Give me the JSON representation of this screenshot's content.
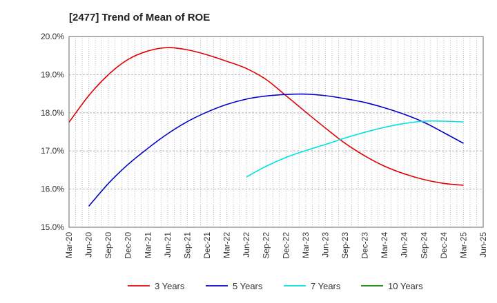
{
  "chart_data": {
    "type": "line",
    "title": "[2477]  Trend of Mean of ROE",
    "xlabel": "",
    "ylabel": "",
    "x": [
      "Mar-20",
      "Jun-20",
      "Sep-20",
      "Dec-20",
      "Mar-21",
      "Jun-21",
      "Sep-21",
      "Dec-21",
      "Mar-22",
      "Jun-22",
      "Sep-22",
      "Dec-22",
      "Mar-23",
      "Jun-23",
      "Sep-23",
      "Dec-23",
      "Mar-24",
      "Jun-24",
      "Sep-24",
      "Dec-24",
      "Mar-25",
      "Jun-25"
    ],
    "ylim": [
      15.0,
      20.0
    ],
    "yticks": [
      "15.0%",
      "16.0%",
      "17.0%",
      "18.0%",
      "19.0%",
      "20.0%"
    ],
    "grid": true,
    "legend_position": "bottom",
    "series": [
      {
        "name": "3 Years",
        "color": "#e00000",
        "values": [
          17.75,
          18.45,
          19.0,
          19.4,
          19.62,
          19.71,
          19.65,
          19.52,
          19.35,
          19.16,
          18.87,
          18.45,
          18.02,
          17.6,
          17.2,
          16.87,
          16.6,
          16.4,
          16.25,
          16.15,
          16.1,
          null
        ]
      },
      {
        "name": "5 Years",
        "color": "#0000c8",
        "values": [
          null,
          15.55,
          16.15,
          16.65,
          17.07,
          17.45,
          17.77,
          18.02,
          18.22,
          18.36,
          18.44,
          18.48,
          18.49,
          18.45,
          18.37,
          18.27,
          18.13,
          17.96,
          17.75,
          17.48,
          17.2,
          null
        ]
      },
      {
        "name": "7 Years",
        "color": "#00e0e0",
        "values": [
          null,
          null,
          null,
          null,
          null,
          null,
          null,
          null,
          null,
          16.32,
          16.6,
          16.83,
          17.01,
          17.17,
          17.34,
          17.49,
          17.62,
          17.72,
          17.78,
          17.78,
          17.76,
          null
        ]
      },
      {
        "name": "10 Years",
        "color": "#008000",
        "values": [
          null,
          null,
          null,
          null,
          null,
          null,
          null,
          null,
          null,
          null,
          null,
          null,
          null,
          null,
          null,
          null,
          null,
          null,
          null,
          null,
          null,
          null
        ]
      }
    ]
  }
}
